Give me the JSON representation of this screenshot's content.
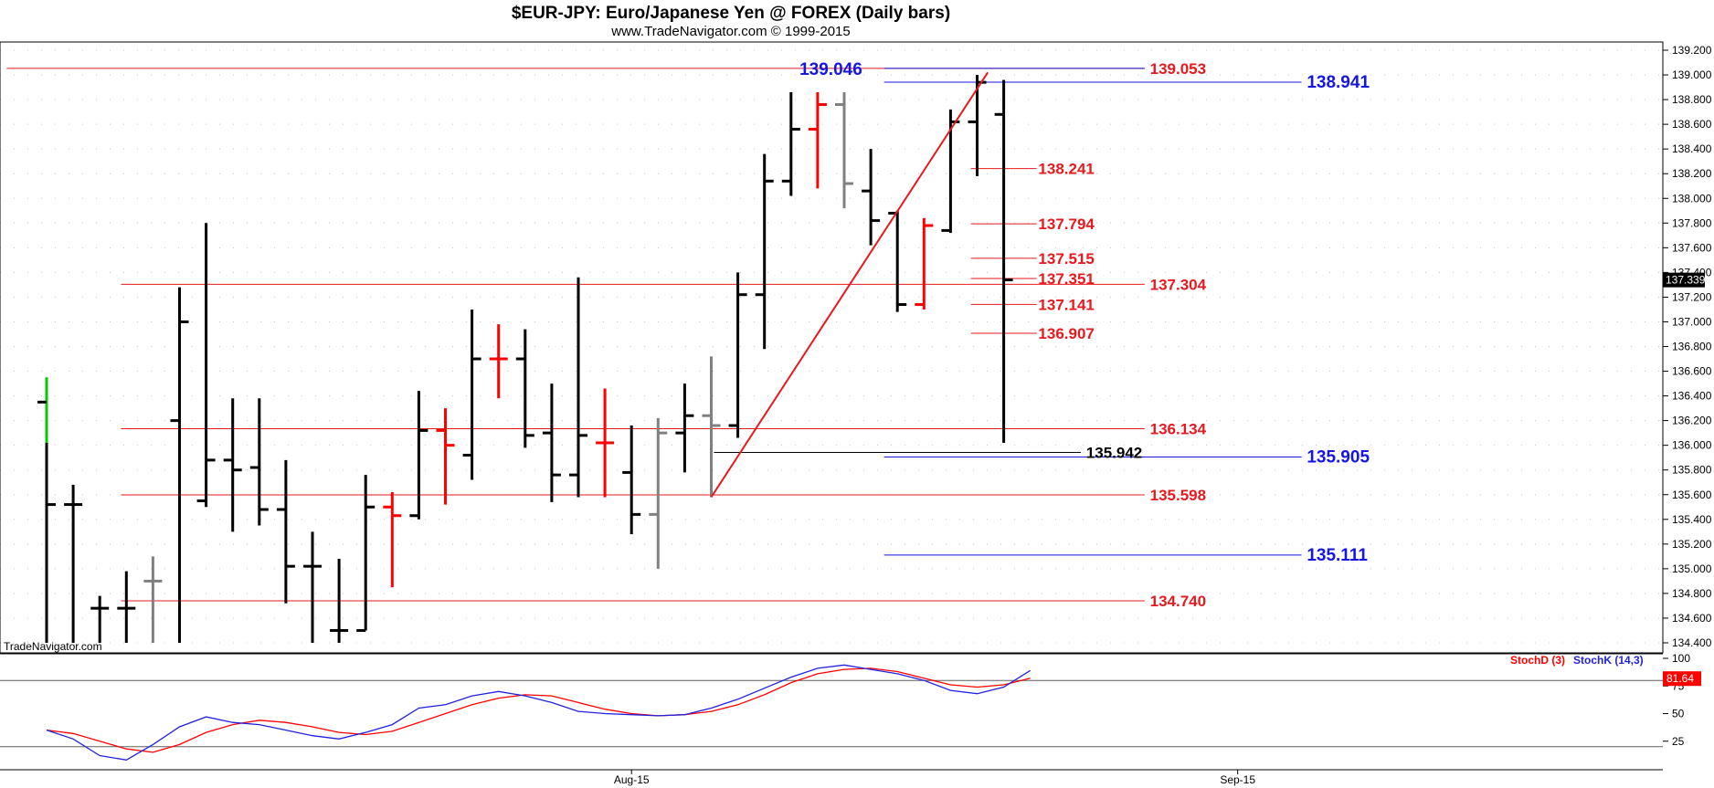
{
  "header": {
    "title": "$EUR-JPY:  Euro/Japanese Yen @ FOREX  (Daily bars)",
    "subtitle": "www.TradeNavigator.com © 1999-2015",
    "watermark": "TradeNavigator.com"
  },
  "colors": {
    "up": "#000000",
    "down": "#ff0000",
    "neutral": "#808080",
    "first_up": "#00cc00",
    "level_red": "#e8191e",
    "level_blue": "#1515e6",
    "stoch_d": "#ff0000",
    "stoch_k": "#2222dd",
    "grid": "#c8c8c8"
  },
  "chart_data": [
    {
      "type": "ohlc",
      "title": "$EUR-JPY:  Euro/Japanese Yen @ FOREX  (Daily bars)",
      "ylim": [
        134.4,
        139.2
      ],
      "y_ticks": [
        "139.200",
        "139.000",
        "138.800",
        "138.600",
        "138.400",
        "138.200",
        "138.000",
        "137.800",
        "137.600",
        "137.400",
        "137.200",
        "137.000",
        "136.800",
        "136.600",
        "136.400",
        "136.200",
        "136.000",
        "135.800",
        "135.600",
        "135.400",
        "135.200",
        "135.000",
        "134.800",
        "134.600",
        "134.400"
      ],
      "x_labels": [
        {
          "label": "Aug-15",
          "bar": 22
        },
        {
          "label": "Sep-15",
          "bar": 44.8
        }
      ],
      "last_price": "137.339",
      "bars": [
        {
          "o": 136.35,
          "h": 136.55,
          "l": 134.4,
          "c": 135.52,
          "color": "up"
        },
        {
          "o": 135.52,
          "h": 135.68,
          "l": 134.4,
          "c": 135.52,
          "color": "up"
        },
        {
          "o": 134.68,
          "h": 134.78,
          "l": 134.4,
          "c": 134.68,
          "color": "up"
        },
        {
          "o": 134.68,
          "h": 134.98,
          "l": 134.4,
          "c": 134.68,
          "color": "up"
        },
        {
          "o": 134.9,
          "h": 135.1,
          "l": 134.4,
          "c": 134.9,
          "color": "neutral"
        },
        {
          "o": 136.2,
          "h": 137.28,
          "l": 134.4,
          "c": 137.0,
          "color": "up"
        },
        {
          "o": 135.55,
          "h": 137.8,
          "l": 135.5,
          "c": 135.88,
          "color": "up"
        },
        {
          "o": 135.88,
          "h": 136.38,
          "l": 135.3,
          "c": 135.8,
          "color": "up"
        },
        {
          "o": 135.82,
          "h": 136.38,
          "l": 135.35,
          "c": 135.48,
          "color": "up"
        },
        {
          "o": 135.48,
          "h": 135.88,
          "l": 134.72,
          "c": 135.02,
          "color": "up"
        },
        {
          "o": 135.02,
          "h": 135.3,
          "l": 134.4,
          "c": 135.02,
          "color": "up"
        },
        {
          "o": 134.5,
          "h": 135.08,
          "l": 134.4,
          "c": 134.5,
          "color": "up"
        },
        {
          "o": 134.5,
          "h": 135.76,
          "l": 134.5,
          "c": 135.5,
          "color": "up"
        },
        {
          "o": 135.5,
          "h": 135.62,
          "l": 134.85,
          "c": 135.43,
          "color": "down"
        },
        {
          "o": 135.43,
          "h": 136.44,
          "l": 135.4,
          "c": 136.12,
          "color": "up"
        },
        {
          "o": 136.12,
          "h": 136.3,
          "l": 135.52,
          "c": 136.0,
          "color": "down"
        },
        {
          "o": 135.92,
          "h": 137.1,
          "l": 135.72,
          "c": 136.7,
          "color": "up"
        },
        {
          "o": 136.7,
          "h": 136.98,
          "l": 136.38,
          "c": 136.7,
          "color": "down"
        },
        {
          "o": 136.7,
          "h": 136.94,
          "l": 135.98,
          "c": 136.08,
          "color": "up"
        },
        {
          "o": 136.1,
          "h": 136.5,
          "l": 135.54,
          "c": 135.76,
          "color": "up"
        },
        {
          "o": 135.76,
          "h": 137.36,
          "l": 135.58,
          "c": 136.08,
          "color": "up"
        },
        {
          "o": 136.02,
          "h": 136.46,
          "l": 135.58,
          "c": 136.02,
          "color": "down"
        },
        {
          "o": 135.78,
          "h": 136.16,
          "l": 135.28,
          "c": 135.44,
          "color": "up"
        },
        {
          "o": 135.44,
          "h": 136.22,
          "l": 135.0,
          "c": 136.1,
          "color": "neutral"
        },
        {
          "o": 136.1,
          "h": 136.5,
          "l": 135.78,
          "c": 136.24,
          "color": "up"
        },
        {
          "o": 136.24,
          "h": 136.72,
          "l": 135.58,
          "c": 136.16,
          "color": "neutral"
        },
        {
          "o": 136.16,
          "h": 137.4,
          "l": 136.06,
          "c": 137.22,
          "color": "up"
        },
        {
          "o": 137.22,
          "h": 138.36,
          "l": 136.78,
          "c": 138.14,
          "color": "up"
        },
        {
          "o": 138.14,
          "h": 138.86,
          "l": 138.02,
          "c": 138.56,
          "color": "up"
        },
        {
          "o": 138.56,
          "h": 138.86,
          "l": 138.08,
          "c": 138.76,
          "color": "down"
        },
        {
          "o": 138.76,
          "h": 138.86,
          "l": 137.92,
          "c": 138.12,
          "color": "neutral"
        },
        {
          "o": 138.06,
          "h": 138.4,
          "l": 137.62,
          "c": 137.82,
          "color": "up"
        },
        {
          "o": 137.88,
          "h": 137.9,
          "l": 137.08,
          "c": 137.14,
          "color": "up"
        },
        {
          "o": 137.14,
          "h": 137.84,
          "l": 137.1,
          "c": 137.78,
          "color": "down"
        },
        {
          "o": 137.74,
          "h": 138.72,
          "l": 137.72,
          "c": 138.62,
          "color": "up"
        },
        {
          "o": 138.62,
          "h": 139.0,
          "l": 138.18,
          "c": 138.94,
          "color": "up"
        },
        {
          "o": 138.68,
          "h": 138.96,
          "l": 136.02,
          "c": 137.34,
          "color": "up"
        }
      ],
      "trendline": {
        "from": {
          "bar": 25,
          "price": 135.58
        },
        "to": {
          "bar": 35.4,
          "price": 139.02
        }
      },
      "levels": [
        {
          "price": 139.053,
          "label": "139.053",
          "color": "level_red",
          "from_bar": -1.5,
          "to_bar": 41.3,
          "label_bar": 41.5,
          "weight": "bold"
        },
        {
          "price": 137.304,
          "label": "137.304",
          "color": "level_red",
          "from_bar": 2.8,
          "to_bar": 41.3,
          "label_bar": 41.5,
          "weight": "bold"
        },
        {
          "price": 136.134,
          "label": "136.134",
          "color": "level_red",
          "from_bar": 2.8,
          "to_bar": 41.3,
          "label_bar": 41.5,
          "weight": "bold"
        },
        {
          "price": 135.598,
          "label": "135.598",
          "color": "level_red",
          "from_bar": 2.8,
          "to_bar": 41.3,
          "label_bar": 41.5,
          "weight": "bold"
        },
        {
          "price": 134.74,
          "label": "134.740",
          "color": "level_red",
          "from_bar": 2.8,
          "to_bar": 41.3,
          "label_bar": 41.5,
          "weight": "bold"
        },
        {
          "price": 139.053,
          "label": "",
          "color": "level_blue",
          "from_bar": 31.5,
          "to_bar": 41.3,
          "label_bar": 0,
          "weight": "bold"
        },
        {
          "price": 138.941,
          "label": "138.941",
          "color": "level_blue",
          "from_bar": 31.5,
          "to_bar": 47.2,
          "label_bar": 47.4,
          "weight": "bold",
          "big": true
        },
        {
          "price": 135.905,
          "label": "135.905",
          "color": "level_blue",
          "from_bar": 31.5,
          "to_bar": 47.2,
          "label_bar": 47.4,
          "weight": "bold",
          "big": true
        },
        {
          "price": 135.111,
          "label": "135.111",
          "color": "level_blue",
          "from_bar": 31.5,
          "to_bar": 47.2,
          "label_bar": 47.4,
          "weight": "bold",
          "big": true
        },
        {
          "price": 135.942,
          "label": "135.942",
          "color": "black",
          "from_bar": 25.1,
          "to_bar": 38.9,
          "label_bar": 39.1,
          "weight": "bold"
        }
      ],
      "fib_levels": [
        {
          "price": 138.241,
          "label": "138.241"
        },
        {
          "price": 137.794,
          "label": "137.794"
        },
        {
          "price": 137.515,
          "label": "137.515"
        },
        {
          "price": 137.351,
          "label": "137.351"
        },
        {
          "price": 137.141,
          "label": "137.141"
        },
        {
          "price": 136.907,
          "label": "136.907"
        }
      ],
      "annotations": [
        {
          "text": "139.046",
          "bar": 29.5,
          "price": 139.046,
          "color": "level_blue"
        }
      ]
    },
    {
      "type": "line",
      "ylim": [
        0,
        100
      ],
      "y_ticks": [
        "100",
        "75",
        "50",
        "25"
      ],
      "reference_lines": [
        80,
        20
      ],
      "last_value": "81.64",
      "series": [
        {
          "name": "StochD (3)",
          "color": "stoch_d",
          "values": [
            35,
            32,
            25,
            18,
            15,
            22,
            33,
            40,
            44,
            42,
            38,
            33,
            31,
            34,
            42,
            50,
            58,
            64,
            67,
            66,
            60,
            54,
            50,
            48,
            49,
            52,
            58,
            67,
            78,
            86,
            90,
            91,
            88,
            82,
            76,
            74,
            76,
            82
          ]
        },
        {
          "name": "StochK (14,3)",
          "color": "stoch_k",
          "values": [
            35,
            27,
            12,
            8,
            22,
            38,
            47,
            42,
            40,
            35,
            30,
            27,
            33,
            40,
            55,
            58,
            66,
            70,
            66,
            60,
            52,
            50,
            49,
            48,
            49,
            55,
            63,
            73,
            83,
            91,
            94,
            90,
            86,
            80,
            71,
            68,
            74,
            89
          ]
        }
      ]
    }
  ]
}
